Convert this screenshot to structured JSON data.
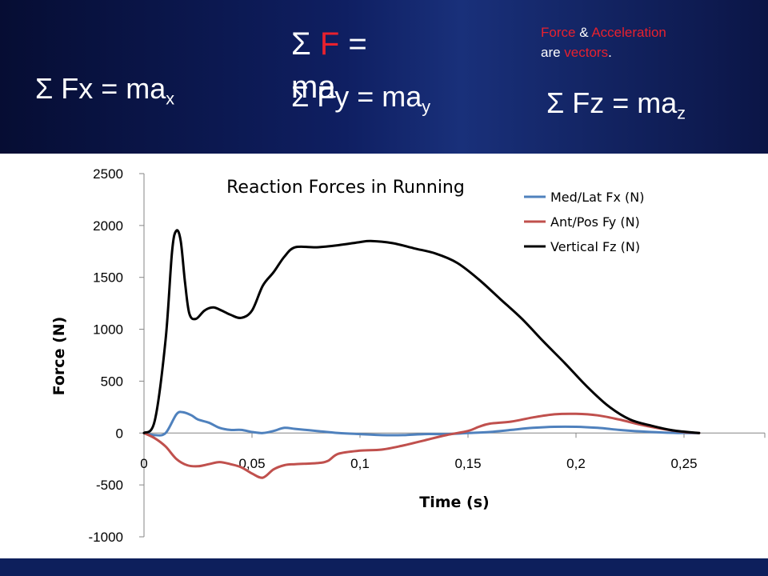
{
  "header": {
    "eq_fx": {
      "main": "Σ Fx = ma",
      "sub": "x"
    },
    "eq_f": {
      "sigma": "Σ ",
      "f": "F",
      "rest": " = ",
      "ma": "ma"
    },
    "eq_fy": {
      "main": "Σ Fy = ma",
      "sub": "y"
    },
    "eq_fz": {
      "main": "Σ Fz = ma",
      "sub": "z"
    },
    "note": {
      "w1": "Force",
      "w2": " & ",
      "w3": "Acceleration",
      "w4": "are ",
      "w5": "vectors",
      "w6": "."
    }
  },
  "colors": {
    "header_bg": "#0f1f62",
    "accent_red": "#e8212e",
    "series_fx": "#4f81bd",
    "series_fy": "#c0504d",
    "series_fz": "#000000"
  },
  "chart_data": {
    "type": "line",
    "title": "Reaction Forces in Running",
    "xlabel": "Time (s)",
    "ylabel": "Force (N)",
    "xlim": [
      0,
      0.29
    ],
    "ylim": [
      -1000,
      2500
    ],
    "x_ticks": [
      "0",
      "0,05",
      "0,1",
      "0,15",
      "0,2",
      "0,25"
    ],
    "y_ticks": [
      "2500",
      "2000",
      "1500",
      "1000",
      "500",
      "0",
      "-500",
      "-1000"
    ],
    "legend_position": "top-right",
    "grid": false,
    "series": [
      {
        "name": "Med/Lat Fx (N)",
        "color": "#4f81bd",
        "points": [
          [
            0,
            0
          ],
          [
            0.005,
            -20
          ],
          [
            0.01,
            0
          ],
          [
            0.015,
            180
          ],
          [
            0.018,
            200
          ],
          [
            0.022,
            170
          ],
          [
            0.025,
            130
          ],
          [
            0.03,
            100
          ],
          [
            0.035,
            50
          ],
          [
            0.04,
            30
          ],
          [
            0.045,
            30
          ],
          [
            0.05,
            10
          ],
          [
            0.055,
            0
          ],
          [
            0.06,
            20
          ],
          [
            0.065,
            50
          ],
          [
            0.07,
            40
          ],
          [
            0.08,
            20
          ],
          [
            0.09,
            0
          ],
          [
            0.1,
            -10
          ],
          [
            0.11,
            -20
          ],
          [
            0.12,
            -20
          ],
          [
            0.13,
            -10
          ],
          [
            0.14,
            -10
          ],
          [
            0.15,
            0
          ],
          [
            0.16,
            10
          ],
          [
            0.17,
            30
          ],
          [
            0.18,
            50
          ],
          [
            0.19,
            60
          ],
          [
            0.2,
            60
          ],
          [
            0.21,
            50
          ],
          [
            0.22,
            30
          ],
          [
            0.23,
            15
          ],
          [
            0.24,
            5
          ],
          [
            0.25,
            0
          ],
          [
            0.257,
            0
          ]
        ]
      },
      {
        "name": "Ant/Pos Fy (N)",
        "color": "#c0504d",
        "points": [
          [
            0,
            0
          ],
          [
            0.005,
            -50
          ],
          [
            0.01,
            -130
          ],
          [
            0.015,
            -250
          ],
          [
            0.02,
            -310
          ],
          [
            0.025,
            -320
          ],
          [
            0.03,
            -300
          ],
          [
            0.035,
            -280
          ],
          [
            0.04,
            -300
          ],
          [
            0.045,
            -330
          ],
          [
            0.05,
            -390
          ],
          [
            0.055,
            -430
          ],
          [
            0.06,
            -350
          ],
          [
            0.065,
            -310
          ],
          [
            0.07,
            -300
          ],
          [
            0.08,
            -290
          ],
          [
            0.085,
            -270
          ],
          [
            0.09,
            -200
          ],
          [
            0.1,
            -170
          ],
          [
            0.11,
            -160
          ],
          [
            0.12,
            -120
          ],
          [
            0.13,
            -70
          ],
          [
            0.14,
            -20
          ],
          [
            0.15,
            20
          ],
          [
            0.155,
            60
          ],
          [
            0.16,
            90
          ],
          [
            0.17,
            110
          ],
          [
            0.18,
            150
          ],
          [
            0.19,
            180
          ],
          [
            0.2,
            185
          ],
          [
            0.21,
            170
          ],
          [
            0.22,
            130
          ],
          [
            0.23,
            80
          ],
          [
            0.24,
            40
          ],
          [
            0.25,
            10
          ],
          [
            0.257,
            0
          ]
        ]
      },
      {
        "name": "Vertical Fz (N)",
        "color": "#000000",
        "points": [
          [
            0,
            0
          ],
          [
            0.005,
            120
          ],
          [
            0.01,
            900
          ],
          [
            0.013,
            1750
          ],
          [
            0.015,
            1950
          ],
          [
            0.017,
            1850
          ],
          [
            0.019,
            1450
          ],
          [
            0.021,
            1150
          ],
          [
            0.024,
            1100
          ],
          [
            0.028,
            1180
          ],
          [
            0.032,
            1210
          ],
          [
            0.036,
            1180
          ],
          [
            0.04,
            1140
          ],
          [
            0.045,
            1110
          ],
          [
            0.05,
            1180
          ],
          [
            0.055,
            1420
          ],
          [
            0.06,
            1550
          ],
          [
            0.065,
            1700
          ],
          [
            0.07,
            1790
          ],
          [
            0.08,
            1790
          ],
          [
            0.09,
            1810
          ],
          [
            0.1,
            1840
          ],
          [
            0.105,
            1850
          ],
          [
            0.115,
            1830
          ],
          [
            0.125,
            1780
          ],
          [
            0.135,
            1730
          ],
          [
            0.145,
            1640
          ],
          [
            0.155,
            1480
          ],
          [
            0.165,
            1290
          ],
          [
            0.175,
            1100
          ],
          [
            0.185,
            880
          ],
          [
            0.195,
            670
          ],
          [
            0.205,
            450
          ],
          [
            0.215,
            260
          ],
          [
            0.225,
            130
          ],
          [
            0.235,
            70
          ],
          [
            0.245,
            25
          ],
          [
            0.257,
            0
          ]
        ]
      }
    ]
  }
}
